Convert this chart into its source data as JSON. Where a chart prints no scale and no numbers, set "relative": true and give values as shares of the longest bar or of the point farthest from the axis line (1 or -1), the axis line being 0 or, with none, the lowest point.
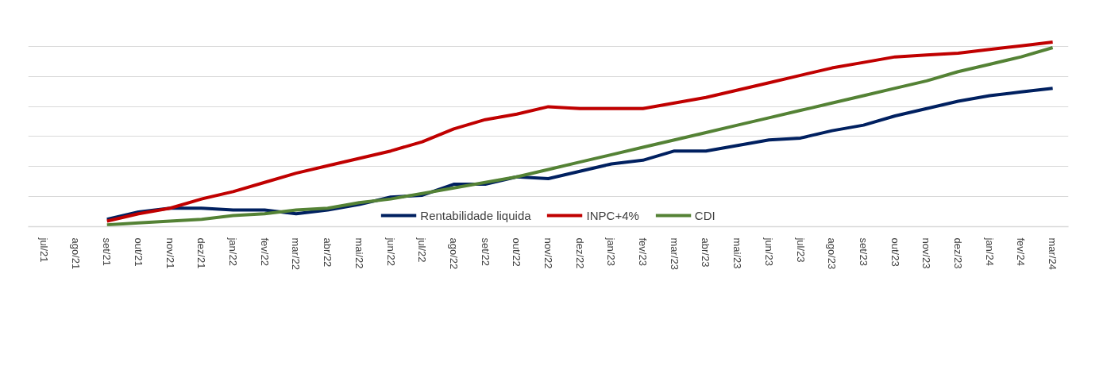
{
  "chart_data": {
    "type": "line",
    "relative": true,
    "grid": "y",
    "legend": "bottom",
    "categories": [
      "jul/21",
      "ago/21",
      "set/21",
      "out/21",
      "nov/21",
      "dez/21",
      "jan/22",
      "fev/22",
      "mar/22",
      "abr/22",
      "mai/22",
      "jun/22",
      "jul/22",
      "ago/22",
      "set/22",
      "out/22",
      "nov/22",
      "dez/22",
      "jan/23",
      "fev/23",
      "mar/23",
      "abr/23",
      "mai/23",
      "jun/23",
      "jul/23",
      "ago/23",
      "set/23",
      "out/23",
      "nov/23",
      "dez/23",
      "jan/24",
      "fev/24",
      "mar/24"
    ],
    "series": [
      {
        "name": "Rentabilidade liquida",
        "color": "#002060",
        "values": [
          null,
          null,
          0.04,
          0.08,
          0.1,
          0.1,
          0.09,
          0.09,
          0.07,
          0.09,
          0.12,
          0.16,
          0.17,
          0.23,
          0.23,
          0.27,
          0.26,
          0.3,
          0.34,
          0.36,
          0.41,
          0.41,
          0.44,
          0.47,
          0.48,
          0.52,
          0.55,
          0.6,
          0.64,
          0.68,
          0.71,
          0.73,
          0.75
        ]
      },
      {
        "name": "INPC+4%",
        "color": "#c00000",
        "values": [
          null,
          null,
          0.03,
          0.07,
          0.1,
          0.15,
          0.19,
          0.24,
          0.29,
          0.33,
          0.37,
          0.41,
          0.46,
          0.53,
          0.58,
          0.61,
          0.65,
          0.64,
          0.64,
          0.64,
          0.67,
          0.7,
          0.74,
          0.78,
          0.82,
          0.86,
          0.89,
          0.92,
          0.93,
          0.94,
          0.96,
          0.98,
          1
        ]
      },
      {
        "name": "CDI",
        "color": "#548235",
        "values": [
          null,
          null,
          0.01,
          0.02,
          0.03,
          0.04,
          0.06,
          0.07,
          0.09,
          0.1,
          0.13,
          0.15,
          0.18,
          0.21,
          0.24,
          0.27,
          0.31,
          0.35,
          0.39,
          0.43,
          0.47,
          0.51,
          0.55,
          0.59,
          0.63,
          0.67,
          0.71,
          0.75,
          0.79,
          0.84,
          0.88,
          0.92,
          0.97
        ]
      }
    ]
  }
}
